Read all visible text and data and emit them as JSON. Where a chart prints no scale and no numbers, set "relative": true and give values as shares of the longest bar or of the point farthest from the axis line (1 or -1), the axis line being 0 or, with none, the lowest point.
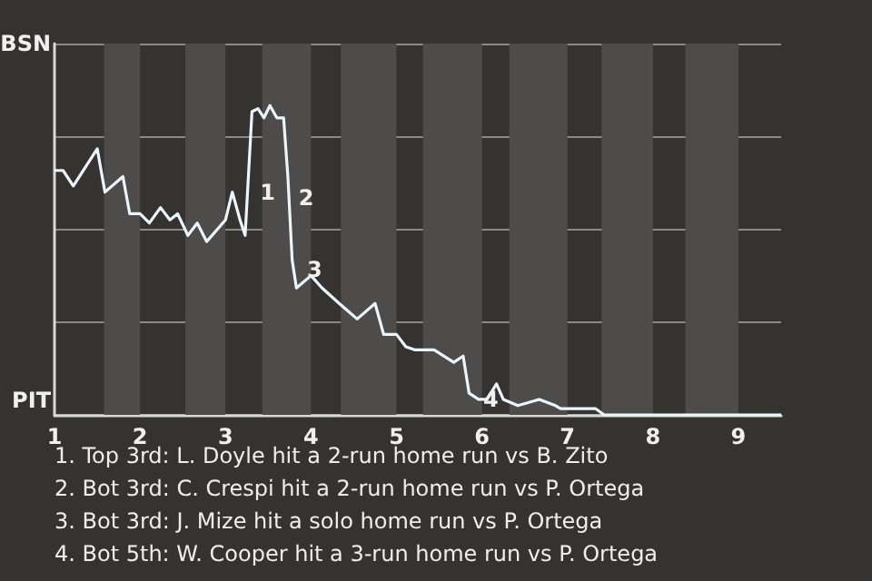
{
  "chart_data": {
    "type": "line",
    "relative": true,
    "xlim": [
      1,
      9.5
    ],
    "xticks": [
      1,
      2,
      3,
      4,
      5,
      6,
      7,
      8,
      9
    ],
    "grid": "y",
    "marker": "none",
    "line_style": "solid",
    "series": [
      {
        "color": "#eaf6fb",
        "x": [
          1,
          1.1,
          1.22,
          1.5,
          1.59,
          1.8,
          1.88,
          2,
          2.11,
          2.24,
          2.35,
          2.44,
          2.56,
          2.67,
          2.78,
          3,
          3.08,
          3.17,
          3.23,
          3.31,
          3.38,
          3.45,
          3.52,
          3.6,
          3.68,
          3.73,
          3.78,
          3.83,
          4,
          4.13,
          4.33,
          4.54,
          4.75,
          4.85,
          5,
          5.11,
          5.22,
          5.44,
          5.67,
          5.78,
          5.85,
          5.96,
          6.06,
          6.17,
          6.25,
          6.42,
          6.67,
          6.86,
          6.92,
          7.05,
          7.24,
          7.33,
          7.43,
          8,
          8.4,
          9.5
        ],
        "values": [
          0.79,
          0.79,
          0.74,
          0.86,
          0.72,
          0.77,
          0.65,
          0.65,
          0.62,
          0.67,
          0.63,
          0.65,
          0.58,
          0.62,
          0.56,
          0.63,
          0.72,
          0.63,
          0.58,
          0.98,
          0.99,
          0.96,
          1,
          0.96,
          0.96,
          0.77,
          0.5,
          0.41,
          0.45,
          0.41,
          0.36,
          0.31,
          0.36,
          0.26,
          0.26,
          0.22,
          0.21,
          0.21,
          0.17,
          0.19,
          0.07,
          0.05,
          0.05,
          0.1,
          0.05,
          0.03,
          0.05,
          0.03,
          0.02,
          0.02,
          0.02,
          0.02,
          0,
          0,
          0,
          0
        ]
      }
    ],
    "bands": [
      {
        "axis": "x",
        "from": 1.58,
        "to": 2,
        "color": "#4d4c4b"
      },
      {
        "axis": "x",
        "from": 2.53,
        "to": 3,
        "color": "#4d4c4b"
      },
      {
        "axis": "x",
        "from": 3.43,
        "to": 4,
        "color": "#4d4c4b"
      },
      {
        "axis": "x",
        "from": 4.35,
        "to": 5,
        "color": "#4d4c4b"
      },
      {
        "axis": "x",
        "from": 5.31,
        "to": 6,
        "color": "#4d4c4b"
      },
      {
        "axis": "x",
        "from": 6.32,
        "to": 7,
        "color": "#4d4c4b"
      },
      {
        "axis": "x",
        "from": 7.4,
        "to": 8,
        "color": "#4d4c4b"
      },
      {
        "axis": "x",
        "from": 8.38,
        "to": 9,
        "color": "#4d4c4b"
      }
    ],
    "annotations": [
      {
        "text": "1",
        "x": 3.32,
        "y": 0.72
      },
      {
        "text": "2",
        "x": 3.77,
        "y": 0.7
      },
      {
        "text": "3",
        "x": 3.87,
        "y": 0.47
      },
      {
        "text": "4",
        "x": 5.93,
        "y": 0.05
      },
      "BSN",
      "PIT",
      "1. Top 3rd: L. Doyle hit a 2-run home run vs B. Zito",
      "2. Bot 3rd: C. Crespi hit a 2-run home run vs P. Ortega",
      "3. Bot 3rd: J. Mize hit a solo home run vs P. Ortega",
      "4. Bot 5th: W. Cooper hit a 3-run home run vs P. Ortega"
    ]
  }
}
